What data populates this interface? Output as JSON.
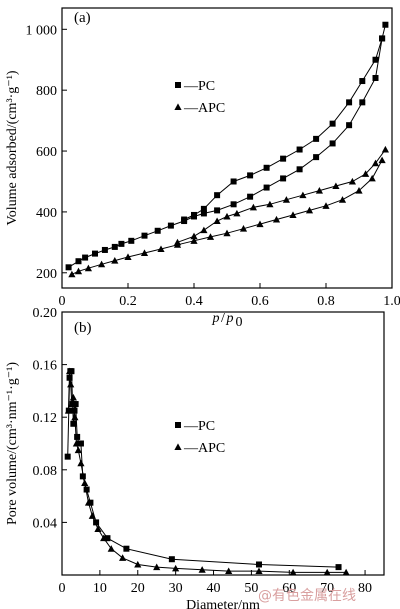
{
  "watermark": "@有色金属在线",
  "chart_data": [
    {
      "type": "line",
      "panel_label": "(a)",
      "xlabel_main": "p",
      "xlabel_sep": "/",
      "xlabel_sub_base": "p",
      "xlabel_sub": "0",
      "ylabel": "Volume adsorbed/(cm³·g⁻¹)",
      "xlim": [
        0,
        1.0
      ],
      "ylim": [
        150,
        1070
      ],
      "xticks": [
        0,
        0.2,
        0.4,
        0.6,
        0.8,
        1.0
      ],
      "xtick_labels": [
        "0",
        "0.2",
        "0.4",
        "0.6",
        "0.8",
        "1.0"
      ],
      "yticks": [
        200,
        400,
        600,
        800,
        1000
      ],
      "ytick_labels": [
        "200",
        "400",
        "600",
        "800",
        "1 000"
      ],
      "grid": false,
      "legend_position": "center-left",
      "series": [
        {
          "name": "PC",
          "marker": "square",
          "legend_label": "—PC",
          "branches": [
            {
              "x": [
                0.02,
                0.05,
                0.07,
                0.1,
                0.13,
                0.16,
                0.18,
                0.21,
                0.25,
                0.29,
                0.33,
                0.37,
                0.4,
                0.43,
                0.47,
                0.52,
                0.57,
                0.62,
                0.67,
                0.72,
                0.77,
                0.82,
                0.87,
                0.91,
                0.95,
                0.97
              ],
              "y": [
                218,
                238,
                250,
                263,
                275,
                285,
                295,
                305,
                322,
                338,
                355,
                370,
                385,
                395,
                405,
                425,
                450,
                480,
                510,
                540,
                580,
                625,
                685,
                760,
                840,
                970
              ]
            },
            {
              "x": [
                0.98,
                0.97,
                0.95,
                0.91,
                0.87,
                0.82,
                0.77,
                0.72,
                0.67,
                0.62,
                0.57,
                0.52,
                0.47,
                0.43,
                0.4,
                0.37
              ],
              "y": [
                1015,
                970,
                900,
                830,
                760,
                690,
                640,
                605,
                575,
                545,
                520,
                500,
                455,
                410,
                390,
                375
              ]
            }
          ]
        },
        {
          "name": "APC",
          "marker": "triangle",
          "legend_label": "—APC",
          "branches": [
            {
              "x": [
                0.03,
                0.05,
                0.08,
                0.12,
                0.16,
                0.2,
                0.25,
                0.3,
                0.35,
                0.4,
                0.45,
                0.5,
                0.55,
                0.6,
                0.65,
                0.7,
                0.75,
                0.8,
                0.85,
                0.9,
                0.94,
                0.97
              ],
              "y": [
                195,
                205,
                215,
                228,
                240,
                252,
                265,
                278,
                292,
                305,
                318,
                330,
                345,
                360,
                375,
                390,
                405,
                420,
                440,
                470,
                510,
                570
              ]
            },
            {
              "x": [
                0.98,
                0.95,
                0.92,
                0.88,
                0.83,
                0.78,
                0.73,
                0.68,
                0.63,
                0.58,
                0.53,
                0.5,
                0.47,
                0.43,
                0.4,
                0.35
              ],
              "y": [
                605,
                560,
                525,
                500,
                485,
                470,
                455,
                440,
                425,
                415,
                395,
                385,
                370,
                340,
                320,
                300
              ]
            }
          ]
        }
      ]
    },
    {
      "type": "line",
      "panel_label": "(b)",
      "xlabel": "Diameter/nm",
      "ylabel": "Pore volume/(cm³·nm⁻¹·g⁻¹)",
      "xlim": [
        0,
        85
      ],
      "ylim": [
        0,
        0.2
      ],
      "xticks": [
        0,
        10,
        20,
        30,
        40,
        50,
        60,
        70,
        80
      ],
      "xtick_labels": [
        "0",
        "10",
        "20",
        "30",
        "40",
        "50",
        "60",
        "70",
        "80"
      ],
      "yticks": [
        0.04,
        0.08,
        0.12,
        0.16,
        0.2
      ],
      "ytick_labels": [
        "0.04",
        "0.08",
        "0.12",
        "0.16",
        "0.20"
      ],
      "grid": false,
      "legend_position": "center",
      "series": [
        {
          "name": "PC",
          "marker": "square",
          "legend_label": "—PC",
          "x": [
            1.5,
            1.8,
            2.0,
            2.2,
            2.5,
            2.8,
            3.0,
            3.3,
            3.6,
            4.0,
            4.5,
            5.0,
            5.5,
            6.5,
            7.5,
            9.0,
            12.0,
            17.0,
            29.0,
            52.0,
            73.0
          ],
          "y": [
            0.09,
            0.125,
            0.15,
            0.155,
            0.155,
            0.13,
            0.115,
            0.125,
            0.13,
            0.105,
            0.1,
            0.1,
            0.075,
            0.065,
            0.055,
            0.04,
            0.028,
            0.02,
            0.012,
            0.008,
            0.006
          ]
        },
        {
          "name": "APC",
          "marker": "triangle",
          "legend_label": "—APC",
          "x": [
            1.7,
            2.0,
            2.3,
            2.6,
            3.0,
            3.4,
            3.8,
            4.3,
            5.0,
            6.0,
            7.0,
            8.0,
            9.5,
            11.0,
            13.0,
            16.0,
            20.0,
            25.0,
            30.0,
            37.0,
            44.0,
            52.0,
            61.0,
            70.0,
            75.0
          ],
          "y": [
            0.125,
            0.155,
            0.145,
            0.13,
            0.135,
            0.12,
            0.1,
            0.095,
            0.085,
            0.07,
            0.055,
            0.045,
            0.035,
            0.028,
            0.02,
            0.013,
            0.008,
            0.006,
            0.005,
            0.004,
            0.003,
            0.003,
            0.002,
            0.002,
            0.002
          ]
        }
      ]
    }
  ]
}
